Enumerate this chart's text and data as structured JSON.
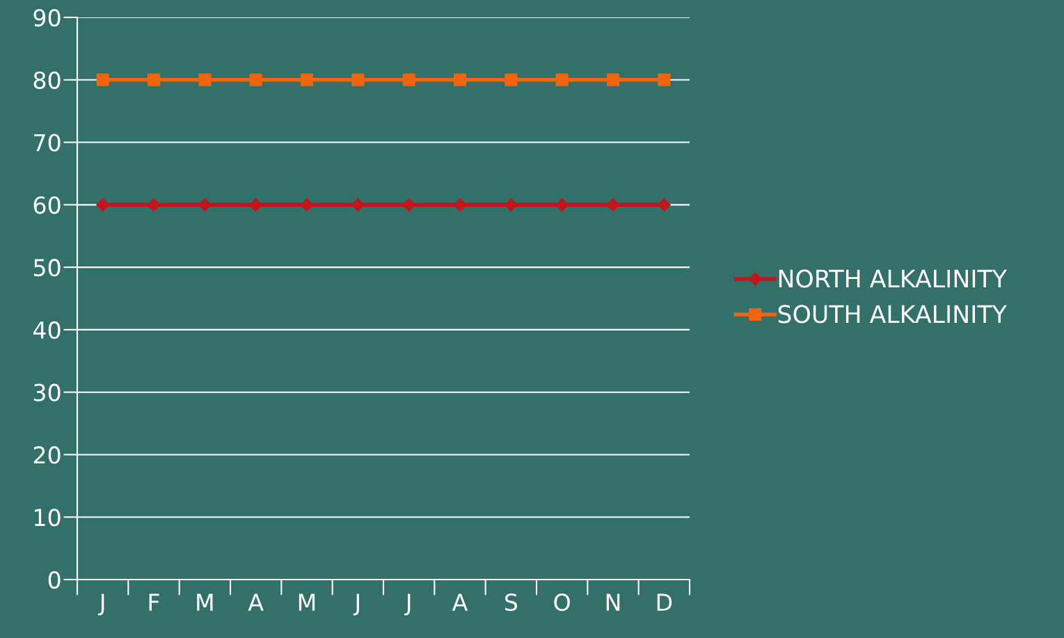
{
  "chart_data": {
    "type": "line",
    "categories": [
      "J",
      "F",
      "M",
      "A",
      "M",
      "J",
      "J",
      "A",
      "S",
      "O",
      "N",
      "D"
    ],
    "series": [
      {
        "name": "NORTH ALKALINITY",
        "color": "#c0161c",
        "marker": "diamond",
        "values": [
          60,
          60,
          60,
          60,
          60,
          60,
          60,
          60,
          60,
          60,
          60,
          60
        ]
      },
      {
        "name": "SOUTH ALKALINITY",
        "color": "#f0650e",
        "marker": "square",
        "values": [
          80,
          80,
          80,
          80,
          80,
          80,
          80,
          80,
          80,
          80,
          80,
          80
        ]
      }
    ],
    "ylim": [
      0,
      90
    ],
    "yticks": [
      0,
      10,
      20,
      30,
      40,
      50,
      60,
      70,
      80,
      90
    ],
    "grid": "y",
    "legend": "right",
    "line_style": "solid"
  }
}
